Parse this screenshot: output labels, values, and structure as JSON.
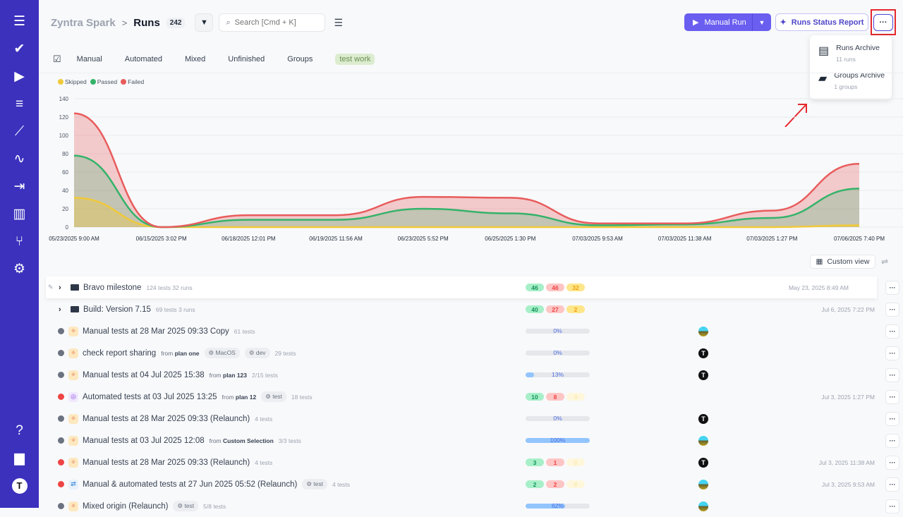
{
  "sidebar": {
    "items": [
      {
        "icon": "menu-icon",
        "glyph": "☰"
      },
      {
        "icon": "check-icon",
        "glyph": "✔"
      },
      {
        "icon": "play-circle-icon",
        "glyph": "▶"
      },
      {
        "icon": "list-check-icon",
        "glyph": "≡"
      },
      {
        "icon": "steps-icon",
        "glyph": "⟋"
      },
      {
        "icon": "pulse-icon",
        "glyph": "∿"
      },
      {
        "icon": "import-icon",
        "glyph": "⇥"
      },
      {
        "icon": "bar-chart-icon",
        "glyph": "▥"
      },
      {
        "icon": "branch-icon",
        "glyph": "⑂"
      },
      {
        "icon": "gear-icon",
        "glyph": "⚙"
      }
    ],
    "bottom": [
      {
        "icon": "help-icon",
        "glyph": "?"
      },
      {
        "icon": "folders-icon",
        "glyph": "▆"
      },
      {
        "icon": "user-avatar-icon",
        "glyph": "T"
      }
    ]
  },
  "header": {
    "project": "Zyntra Spark",
    "separator": ">",
    "page": "Runs",
    "count": "242",
    "search_placeholder": "Search [Cmd + K]"
  },
  "actions": {
    "manual_run": "Manual Run",
    "status_report": "Runs Status Report",
    "more": "···"
  },
  "menu": [
    {
      "label": "Runs Archive",
      "sub": "11 runs"
    },
    {
      "label": "Groups Archive",
      "sub": "1 groups"
    }
  ],
  "tabs": [
    "Manual",
    "Automated",
    "Mixed",
    "Unfinished",
    "Groups",
    "test work"
  ],
  "chart_data": {
    "type": "area",
    "stacked": true,
    "ylim": [
      0,
      140
    ],
    "yticks": [
      0,
      20,
      40,
      60,
      80,
      100,
      120,
      140
    ],
    "grid": true,
    "legend_placement": "top-left",
    "categories": [
      "05/23/2025 9:00 AM",
      "06/15/2025 3:02 PM",
      "06/18/2025 12:01 PM",
      "06/19/2025 11:56 AM",
      "06/23/2025 5:52 PM",
      "06/25/2025 1:30 PM",
      "07/03/2025 9:53 AM",
      "07/03/2025 11:38 AM",
      "07/03/2025 1:27 PM",
      "07/06/2025 7:40 PM"
    ],
    "series": [
      {
        "name": "Skipped",
        "color": "#f0c93a",
        "values": [
          32,
          0,
          0,
          0,
          0,
          0,
          0,
          0,
          0,
          2
        ]
      },
      {
        "name": "Passed",
        "color": "#34b36a",
        "values": [
          46,
          0,
          8,
          8,
          20,
          15,
          2,
          3,
          10,
          40
        ]
      },
      {
        "name": "Failed",
        "color": "#e85c5c",
        "values": [
          46,
          0,
          5,
          5,
          13,
          17,
          2,
          1,
          8,
          27
        ]
      }
    ]
  },
  "view": {
    "custom_view": "Custom view"
  },
  "rows": [
    {
      "kind": "group",
      "title": "Bravo milestone",
      "meta": "124 tests  32 runs",
      "stats": [
        46,
        46,
        32
      ],
      "date": "May 23, 2025 8:49 AM",
      "hover": true
    },
    {
      "kind": "group",
      "title": "Build: Version 7.15",
      "meta": "69 tests  3 runs",
      "stats": [
        40,
        27,
        2
      ],
      "date": "Jul 6, 2025 7:22 PM"
    },
    {
      "kind": "run",
      "status": "progress",
      "type": "manual",
      "title": "Manual tests at 28 Mar 2025 09:33 Copy",
      "meta": "61 tests",
      "progress": 0,
      "progress_label": "0%",
      "avatar": "c"
    },
    {
      "kind": "run",
      "status": "progress",
      "type": "manual",
      "title": "check report sharing",
      "from": "plan one",
      "tags": [
        "MacOS",
        "dev"
      ],
      "meta": "29 tests",
      "progress": 0,
      "progress_label": "0%",
      "avatar": "t"
    },
    {
      "kind": "run",
      "status": "progress",
      "type": "manual",
      "title": "Manual tests at 04 Jul 2025 15:38",
      "from": "plan 123",
      "meta": "2/15 tests",
      "progress": 13,
      "progress_label": "13%",
      "avatar": "t"
    },
    {
      "kind": "run",
      "status": "failed",
      "type": "auto",
      "title": "Automated tests at 03 Jul 2025 13:25",
      "from": "plan 12",
      "tags": [
        "test"
      ],
      "meta": "18 tests",
      "stats": [
        10,
        8,
        0
      ],
      "date": "Jul 3, 2025 1:27 PM"
    },
    {
      "kind": "run",
      "status": "progress",
      "type": "manual",
      "title": "Manual tests at 28 Mar 2025 09:33 (Relaunch)",
      "meta": "4 tests",
      "progress": 0,
      "progress_label": "0%",
      "avatar": "t"
    },
    {
      "kind": "run",
      "status": "progress",
      "type": "manual",
      "title": "Manual tests at 03 Jul 2025 12:08",
      "from": "Custom Selection",
      "meta": "3/3 tests",
      "progress": 100,
      "progress_label": "100%",
      "avatar": "c"
    },
    {
      "kind": "run",
      "status": "failed",
      "type": "manual",
      "title": "Manual tests at 28 Mar 2025 09:33 (Relaunch)",
      "meta": "4 tests",
      "stats": [
        3,
        1,
        0
      ],
      "avatar": "t",
      "date": "Jul 3, 2025 11:38 AM"
    },
    {
      "kind": "run",
      "status": "failed",
      "type": "mixed",
      "title": "Manual & automated tests at 27 Jun 2025 05:52 (Relaunch)",
      "tags": [
        "test"
      ],
      "meta": "4 tests",
      "stats": [
        2,
        2,
        0
      ],
      "avatar": "c",
      "date": "Jul 3, 2025 9:53 AM"
    },
    {
      "kind": "run",
      "status": "progress",
      "type": "manual",
      "title": "Mixed origin (Relaunch)",
      "tags": [
        "test"
      ],
      "meta": "5/8 tests",
      "progress": 62,
      "progress_label": "62%",
      "avatar": "c"
    }
  ],
  "labels": {
    "from": "from"
  }
}
